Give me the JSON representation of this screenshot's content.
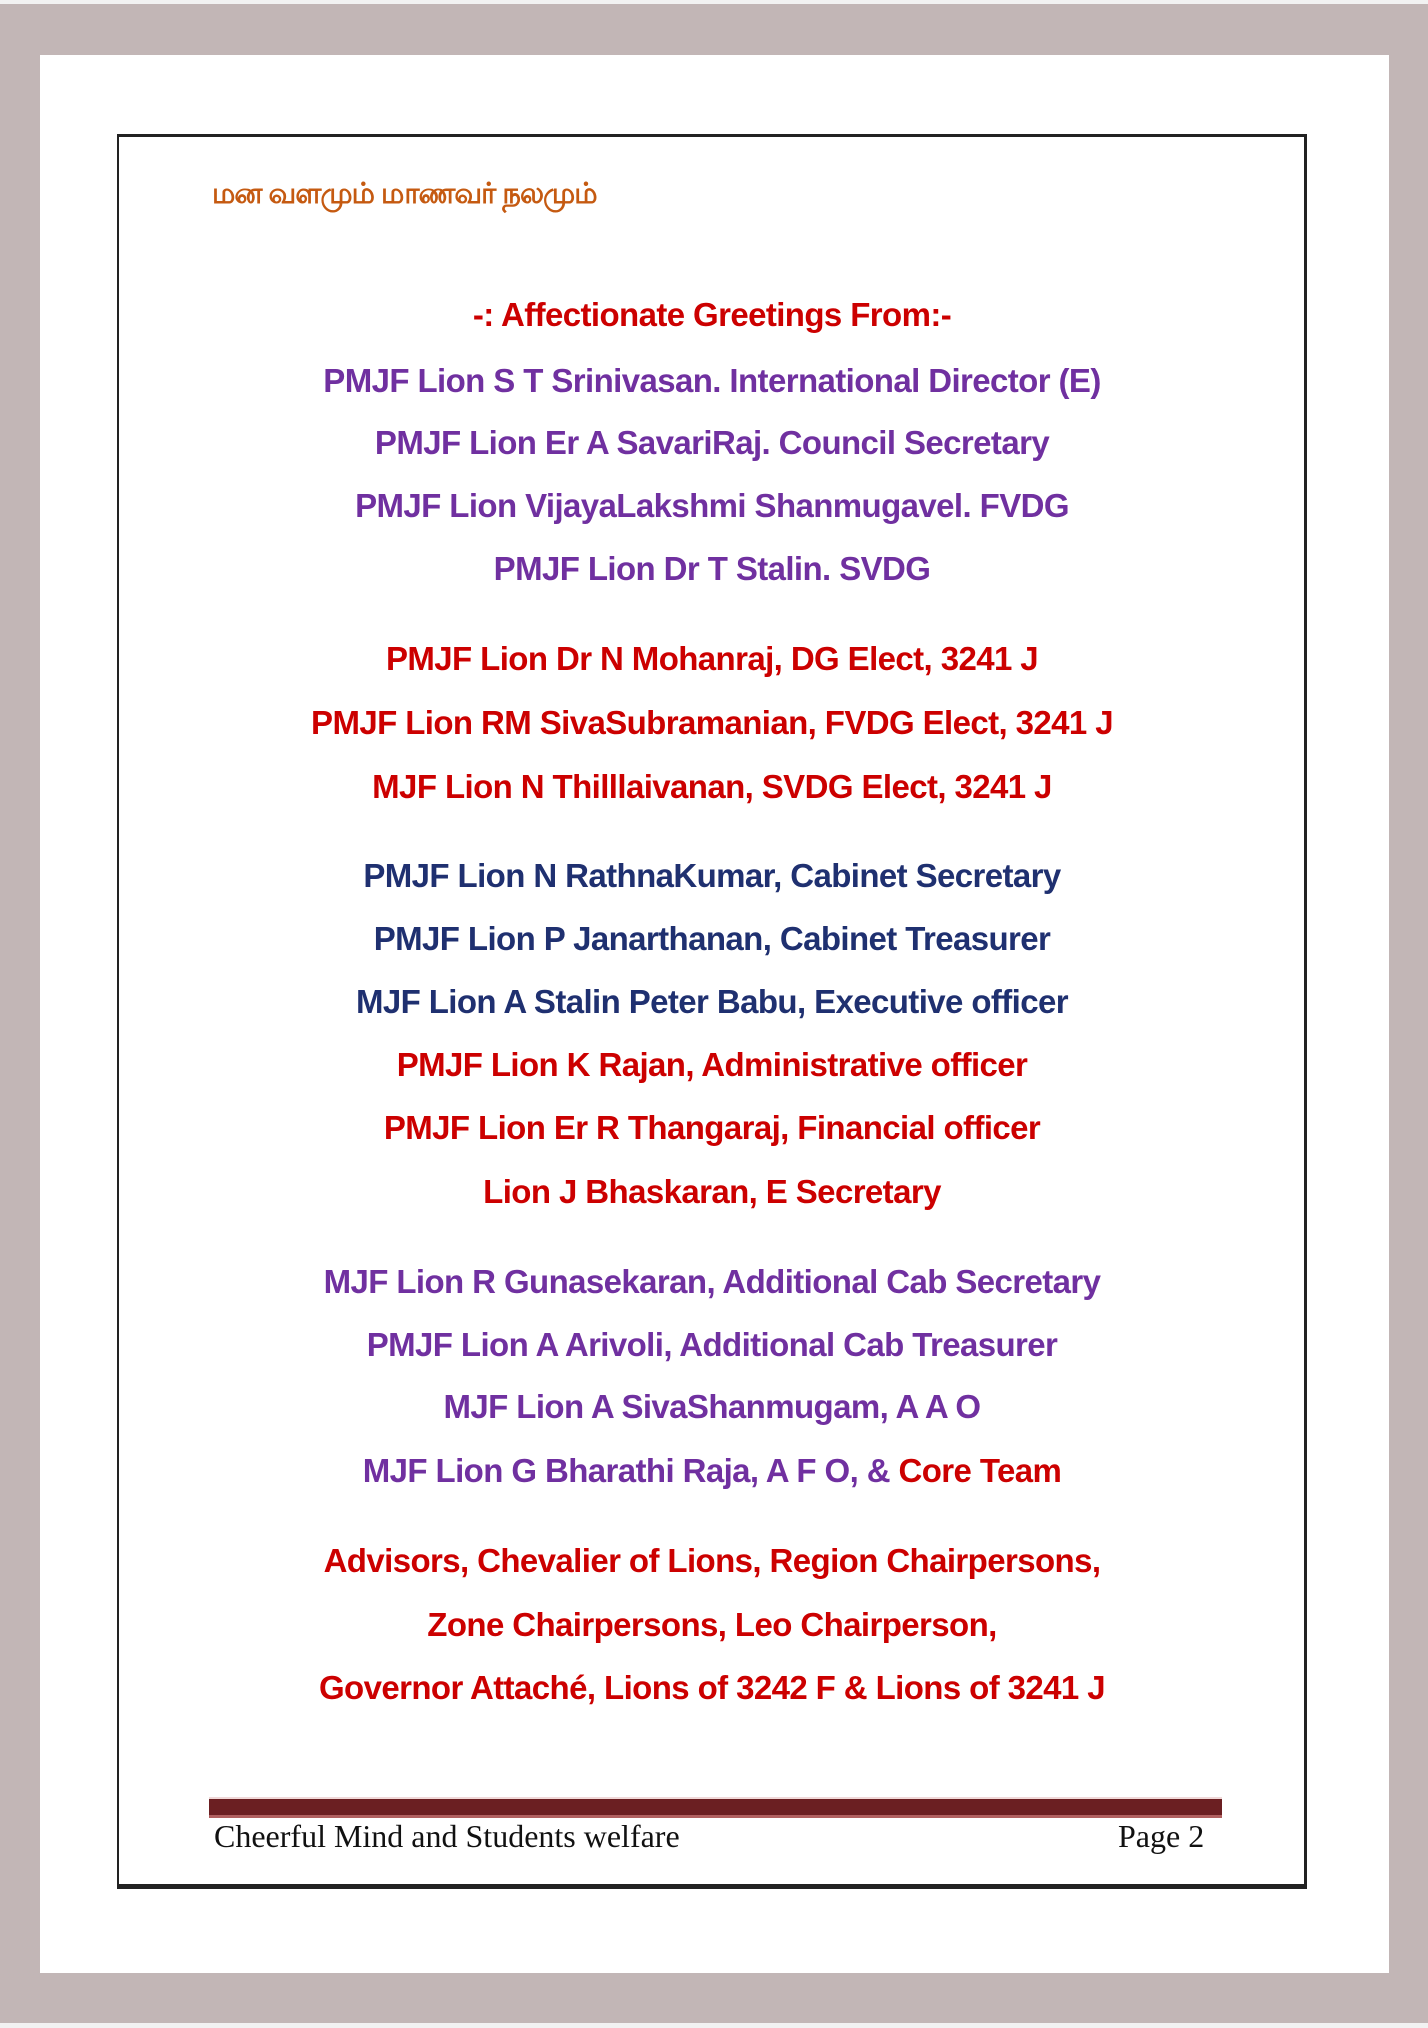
{
  "header": {
    "tamil_title": "மன வளமும் மாணவர் நலமும்"
  },
  "heading": "-: Affectionate Greetings From:-",
  "group1": [
    "PMJF Lion S T Srinivasan. International Director (E)",
    "PMJF Lion Er A SavariRaj. Council Secretary",
    "PMJF Lion VijayaLakshmi Shanmugavel. FVDG",
    "PMJF Lion Dr T Stalin. SVDG"
  ],
  "group2": [
    "PMJF Lion Dr N Mohanraj, DG Elect, 3241 J",
    "PMJF Lion RM SivaSubramanian, FVDG Elect, 3241 J",
    "MJF Lion N Thilllaivanan, SVDG Elect, 3241 J"
  ],
  "group3_navy": [
    "PMJF Lion N RathnaKumar, Cabinet Secretary",
    "PMJF Lion P Janarthanan, Cabinet Treasurer",
    "MJF Lion A Stalin Peter Babu, Executive officer"
  ],
  "group3_red": [
    "PMJF Lion K Rajan, Administrative officer",
    "PMJF Lion Er R Thangaraj, Financial officer",
    "Lion J Bhaskaran, E Secretary"
  ],
  "group4": [
    "MJF Lion R Gunasekaran, Additional Cab Secretary",
    "PMJF Lion A Arivoli, Additional Cab Treasurer",
    "MJF Lion A SivaShanmugam, A A O"
  ],
  "group4_last": {
    "purple_part": "MJF Lion G Bharathi Raja, A F O, &",
    "red_part": " Core Team"
  },
  "group5": [
    "Advisors, Chevalier of Lions, Region Chairpersons,",
    "Zone Chairpersons, Leo Chairperson,",
    "Governor Attaché, Lions of 3242 F & Lions of 3241 J"
  ],
  "footer": {
    "title": "Cheerful Mind and Students welfare",
    "page": "Page 2"
  },
  "colors": {
    "red": "#cc0000",
    "purple": "#7030a0",
    "navy": "#1f3070",
    "tamil": "#c55a11",
    "footer_bar": "#6b1f22",
    "background": "#c2b6b6"
  }
}
